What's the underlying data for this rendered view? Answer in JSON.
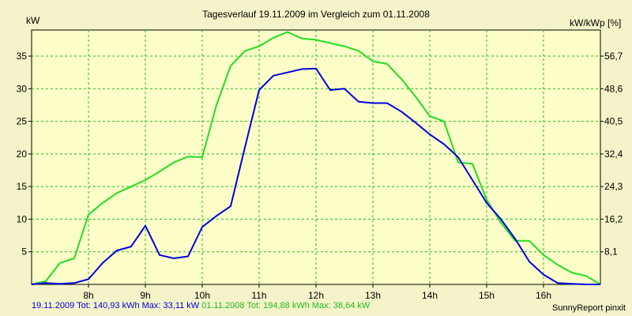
{
  "chart_data": {
    "type": "line",
    "title": "Tagesverlauf 19.11.2009 im Vergleich zum 01.11.2008",
    "ylabel_left": "kW",
    "ylabel_right": "kW/kWp [%]",
    "ylim": [
      0,
      39
    ],
    "xlim": [
      7.0,
      17.0
    ],
    "grid": true,
    "x_ticks": [
      {
        "value": 8,
        "label": "8h"
      },
      {
        "value": 9,
        "label": "9h"
      },
      {
        "value": 10,
        "label": "10h"
      },
      {
        "value": 11,
        "label": "11h"
      },
      {
        "value": 12,
        "label": "12h"
      },
      {
        "value": 13,
        "label": "13h"
      },
      {
        "value": 14,
        "label": "14h"
      },
      {
        "value": 15,
        "label": "15h"
      },
      {
        "value": 16,
        "label": "16h"
      }
    ],
    "y_ticks_left": [
      5,
      10,
      15,
      20,
      25,
      30,
      35
    ],
    "y_ticks_right": [
      "8,1",
      "16,2",
      "24,3",
      "32,4",
      "40,5",
      "48,6",
      "56,7"
    ],
    "series": [
      {
        "name": "01.11.2008",
        "color": "#22dd22",
        "points": [
          [
            7.0,
            0
          ],
          [
            7.25,
            0.5
          ],
          [
            7.5,
            3.3
          ],
          [
            7.75,
            4.0
          ],
          [
            8.0,
            10.7
          ],
          [
            8.25,
            12.5
          ],
          [
            8.5,
            14.0
          ],
          [
            8.75,
            15.0
          ],
          [
            9.0,
            16.0
          ],
          [
            9.25,
            17.3
          ],
          [
            9.5,
            18.7
          ],
          [
            9.75,
            19.6
          ],
          [
            10.0,
            19.5
          ],
          [
            10.25,
            27.5
          ],
          [
            10.5,
            33.5
          ],
          [
            10.75,
            35.8
          ],
          [
            11.0,
            36.5
          ],
          [
            11.25,
            37.8
          ],
          [
            11.5,
            38.7
          ],
          [
            11.75,
            37.7
          ],
          [
            12.0,
            37.5
          ],
          [
            12.25,
            37.0
          ],
          [
            12.5,
            36.5
          ],
          [
            12.75,
            35.8
          ],
          [
            13.0,
            34.2
          ],
          [
            13.25,
            33.8
          ],
          [
            13.5,
            31.5
          ],
          [
            13.75,
            28.8
          ],
          [
            14.0,
            25.8
          ],
          [
            14.25,
            25.0
          ],
          [
            14.5,
            18.7
          ],
          [
            14.75,
            18.5
          ],
          [
            15.0,
            13.0
          ],
          [
            15.25,
            9.5
          ],
          [
            15.5,
            6.7
          ],
          [
            15.75,
            6.7
          ],
          [
            16.0,
            4.5
          ],
          [
            16.25,
            3.0
          ],
          [
            16.5,
            1.8
          ],
          [
            16.75,
            1.3
          ],
          [
            17.0,
            0
          ]
        ]
      },
      {
        "name": "19.11.2009",
        "color": "#0000dd",
        "points": [
          [
            7.0,
            0
          ],
          [
            7.25,
            0.2
          ],
          [
            7.5,
            0.1
          ],
          [
            7.75,
            0.2
          ],
          [
            8.0,
            0.8
          ],
          [
            8.25,
            3.3
          ],
          [
            8.5,
            5.2
          ],
          [
            8.75,
            5.8
          ],
          [
            9.0,
            9.0
          ],
          [
            9.25,
            4.5
          ],
          [
            9.5,
            4.0
          ],
          [
            9.75,
            4.3
          ],
          [
            10.0,
            8.8
          ],
          [
            10.25,
            10.5
          ],
          [
            10.5,
            12.0
          ],
          [
            10.75,
            21.0
          ],
          [
            11.0,
            29.8
          ],
          [
            11.25,
            32.0
          ],
          [
            11.5,
            32.5
          ],
          [
            11.75,
            33.0
          ],
          [
            12.0,
            33.1
          ],
          [
            12.25,
            29.8
          ],
          [
            12.5,
            30.0
          ],
          [
            12.75,
            28.0
          ],
          [
            13.0,
            27.8
          ],
          [
            13.25,
            27.8
          ],
          [
            13.5,
            26.5
          ],
          [
            13.75,
            24.8
          ],
          [
            14.0,
            23.0
          ],
          [
            14.25,
            21.5
          ],
          [
            14.5,
            19.5
          ],
          [
            14.75,
            16.0
          ],
          [
            15.0,
            12.5
          ],
          [
            15.25,
            10.0
          ],
          [
            15.5,
            7.0
          ],
          [
            15.75,
            3.5
          ],
          [
            16.0,
            1.5
          ],
          [
            16.25,
            0.2
          ],
          [
            16.5,
            0.1
          ],
          [
            16.75,
            0.0
          ],
          [
            17.0,
            0
          ]
        ]
      }
    ],
    "colors": {
      "background": "#f5f3c9",
      "plot_background": "#fefec9",
      "grid": "#22bb22"
    }
  },
  "footer": {
    "series1_text": "19.11.2009 Tot: 140,93 kWh Max: 33,11 kW",
    "series2_text": "01.11.2008 Tot: 194,88 kWh Max: 38,64 kW",
    "credit": "SunnyReport pinxit"
  }
}
